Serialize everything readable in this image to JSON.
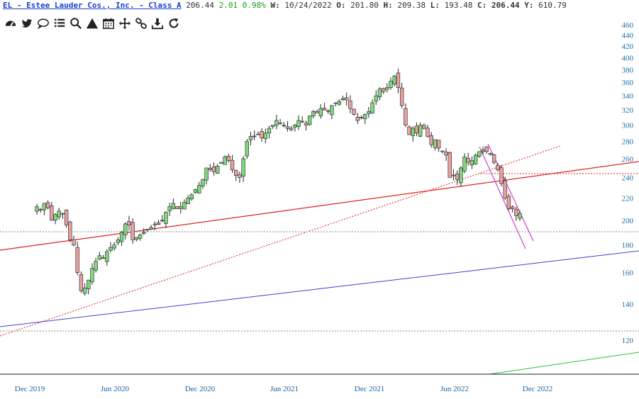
{
  "header": {
    "symbol_link": "EL - Estee Lauder Cos., Inc. - Class A",
    "last": "206.44",
    "change": "2.01 0.98%",
    "w_label": "W:",
    "w_value": "10/24/2022",
    "o_label": "O:",
    "o_value": "201.80",
    "h_label": "H:",
    "h_value": "209.38",
    "l_label": "L:",
    "l_value": "193.48",
    "c_label": "C:",
    "c_value": "206.44",
    "y_label": "Y:",
    "y_value": "610.79"
  },
  "toolbar": [
    "dashboard-icon",
    "twitter-icon",
    "comment-icon",
    "list-icon",
    "search-icon",
    "alert-icon",
    "calendar-icon",
    "move-icon",
    "link-icon",
    "download-icon",
    "refresh-icon"
  ],
  "colors": {
    "up": "#7fd67f",
    "down": "#e8a0a0",
    "neutral": "#8888dd",
    "red_line": "#e02020",
    "blue_line": "#4040d0",
    "green_line": "#30c030",
    "channel": "#cc44cc"
  },
  "chart_data": {
    "type": "candlestick",
    "title": "EL - Estee Lauder Cos., Inc. - Class A",
    "timeframe": "weekly",
    "y_ticks": [
      120,
      140,
      160,
      180,
      200,
      220,
      240,
      260,
      280,
      300,
      320,
      340,
      360,
      380,
      400,
      420,
      440,
      460
    ],
    "x_ticks": [
      "Dec 2019",
      "Jun 2020",
      "Dec 2020",
      "Jun 2021",
      "Dec 2021",
      "Jun 2022",
      "Dec 2022"
    ],
    "y_scale": "log",
    "ylim": [
      110,
      470
    ],
    "last_close": 206.44,
    "grid": false,
    "weekly_closes": [
      212,
      209,
      215,
      211,
      200,
      205,
      208,
      206,
      196,
      184,
      180,
      160,
      148,
      150,
      155,
      163,
      168,
      172,
      170,
      175,
      178,
      180,
      184,
      190,
      197,
      196,
      184,
      186,
      188,
      190,
      192,
      194,
      196,
      198,
      200,
      207,
      212,
      215,
      210,
      212,
      216,
      220,
      223,
      228,
      232,
      238,
      250,
      248,
      246,
      252,
      256,
      262,
      258,
      248,
      242,
      240,
      260,
      280,
      286,
      286,
      288,
      284,
      290,
      296,
      300,
      306,
      302,
      300,
      298,
      296,
      300,
      306,
      304,
      300,
      312,
      318,
      316,
      322,
      320,
      318,
      326,
      330,
      332,
      336,
      334,
      322,
      314,
      306,
      310,
      314,
      318,
      330,
      340,
      350,
      346,
      352,
      362,
      370,
      352,
      326,
      300,
      288,
      296,
      290,
      300,
      296,
      286,
      276,
      282,
      272,
      268,
      264,
      240,
      242,
      238,
      250,
      262,
      256,
      258,
      264,
      268,
      270,
      268,
      266,
      256,
      248,
      234,
      220,
      210,
      210,
      204,
      206
    ]
  }
}
